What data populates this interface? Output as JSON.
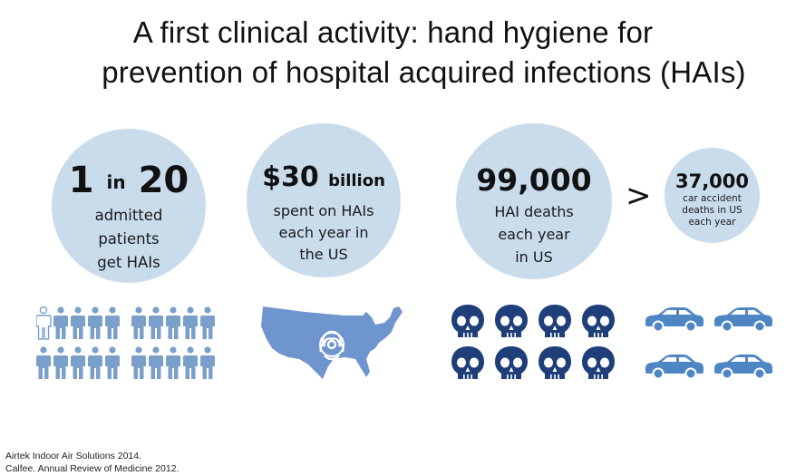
{
  "slide": {
    "title_line1": "A first clinical activity: hand hygiene for",
    "title_line2": "prevention of hospital acquired infections (HAIs)"
  },
  "stats": [
    {
      "number_a": "1",
      "connector": "in",
      "number_b": "20",
      "desc_lines": [
        "admitted",
        "patients",
        "get HAIs"
      ]
    },
    {
      "number": "$30",
      "unit": "billion",
      "desc_lines": [
        "spent on HAIs",
        "each year in",
        "the US"
      ]
    },
    {
      "number": "99,000",
      "desc_lines": [
        "HAI deaths",
        "each year",
        "in US"
      ]
    },
    {
      "number": "37,000",
      "desc_lines": [
        "car accident",
        "deaths in US",
        "each year"
      ]
    }
  ],
  "comparison_symbol": ">",
  "icons": {
    "people": "person-icon",
    "map": "us-map-icon",
    "biohazard": "biohazard-icon",
    "skull": "skull-icon",
    "car": "car-icon"
  },
  "colors": {
    "circle_fill": "#c9dcec",
    "icon_blue": "#1f3f7a",
    "people_blue": "#7b9fcb",
    "map_blue": "#6f95cf",
    "car_blue": "#4e86c4"
  },
  "citations": [
    "Airtek Indoor Air Solutions 2014.",
    "Calfee. Annual Review of Medicine 2012."
  ]
}
